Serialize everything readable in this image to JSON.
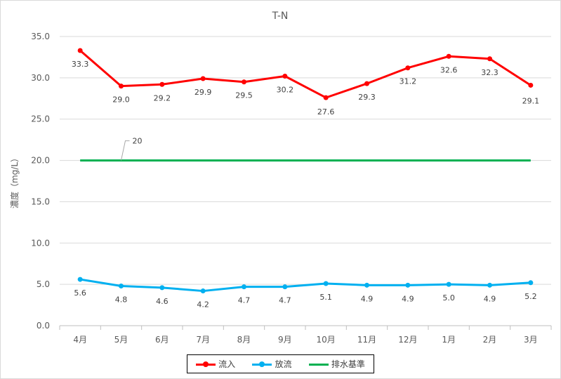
{
  "chart_data": {
    "type": "line",
    "title": "T-N",
    "ylabel": "濃度（mg/L）",
    "xlabel": "",
    "categories": [
      "4月",
      "5月",
      "6月",
      "7月",
      "8月",
      "9月",
      "10月",
      "11月",
      "12月",
      "1月",
      "2月",
      "3月"
    ],
    "ylim": [
      0,
      35
    ],
    "yticks": [
      "0.0",
      "5.0",
      "10.0",
      "15.0",
      "20.0",
      "25.0",
      "30.0",
      "35.0"
    ],
    "grid": true,
    "legend_position": "bottom",
    "series": [
      {
        "name": "流入",
        "color": "#ff0000",
        "marker": true,
        "values": [
          33.3,
          29.0,
          29.2,
          29.9,
          29.5,
          30.2,
          27.6,
          29.3,
          31.2,
          32.6,
          32.3,
          29.1
        ],
        "labels": [
          "33.3",
          "29.0",
          "29.2",
          "29.9",
          "29.5",
          "30.2",
          "27.6",
          "29.3",
          "31.2",
          "32.6",
          "32.3",
          "29.1"
        ]
      },
      {
        "name": "放流",
        "color": "#00b0f0",
        "marker": true,
        "values": [
          5.6,
          4.8,
          4.6,
          4.2,
          4.7,
          4.7,
          5.1,
          4.9,
          4.9,
          5.0,
          4.9,
          5.2
        ],
        "labels": [
          "5.6",
          "4.8",
          "4.6",
          "4.2",
          "4.7",
          "4.7",
          "5.1",
          "4.9",
          "4.9",
          "5.0",
          "4.9",
          "5.2"
        ]
      },
      {
        "name": "排水基準",
        "color": "#00b050",
        "marker": false,
        "values": [
          20,
          20,
          20,
          20,
          20,
          20,
          20,
          20,
          20,
          20,
          20,
          20
        ],
        "callout": "20"
      }
    ]
  }
}
